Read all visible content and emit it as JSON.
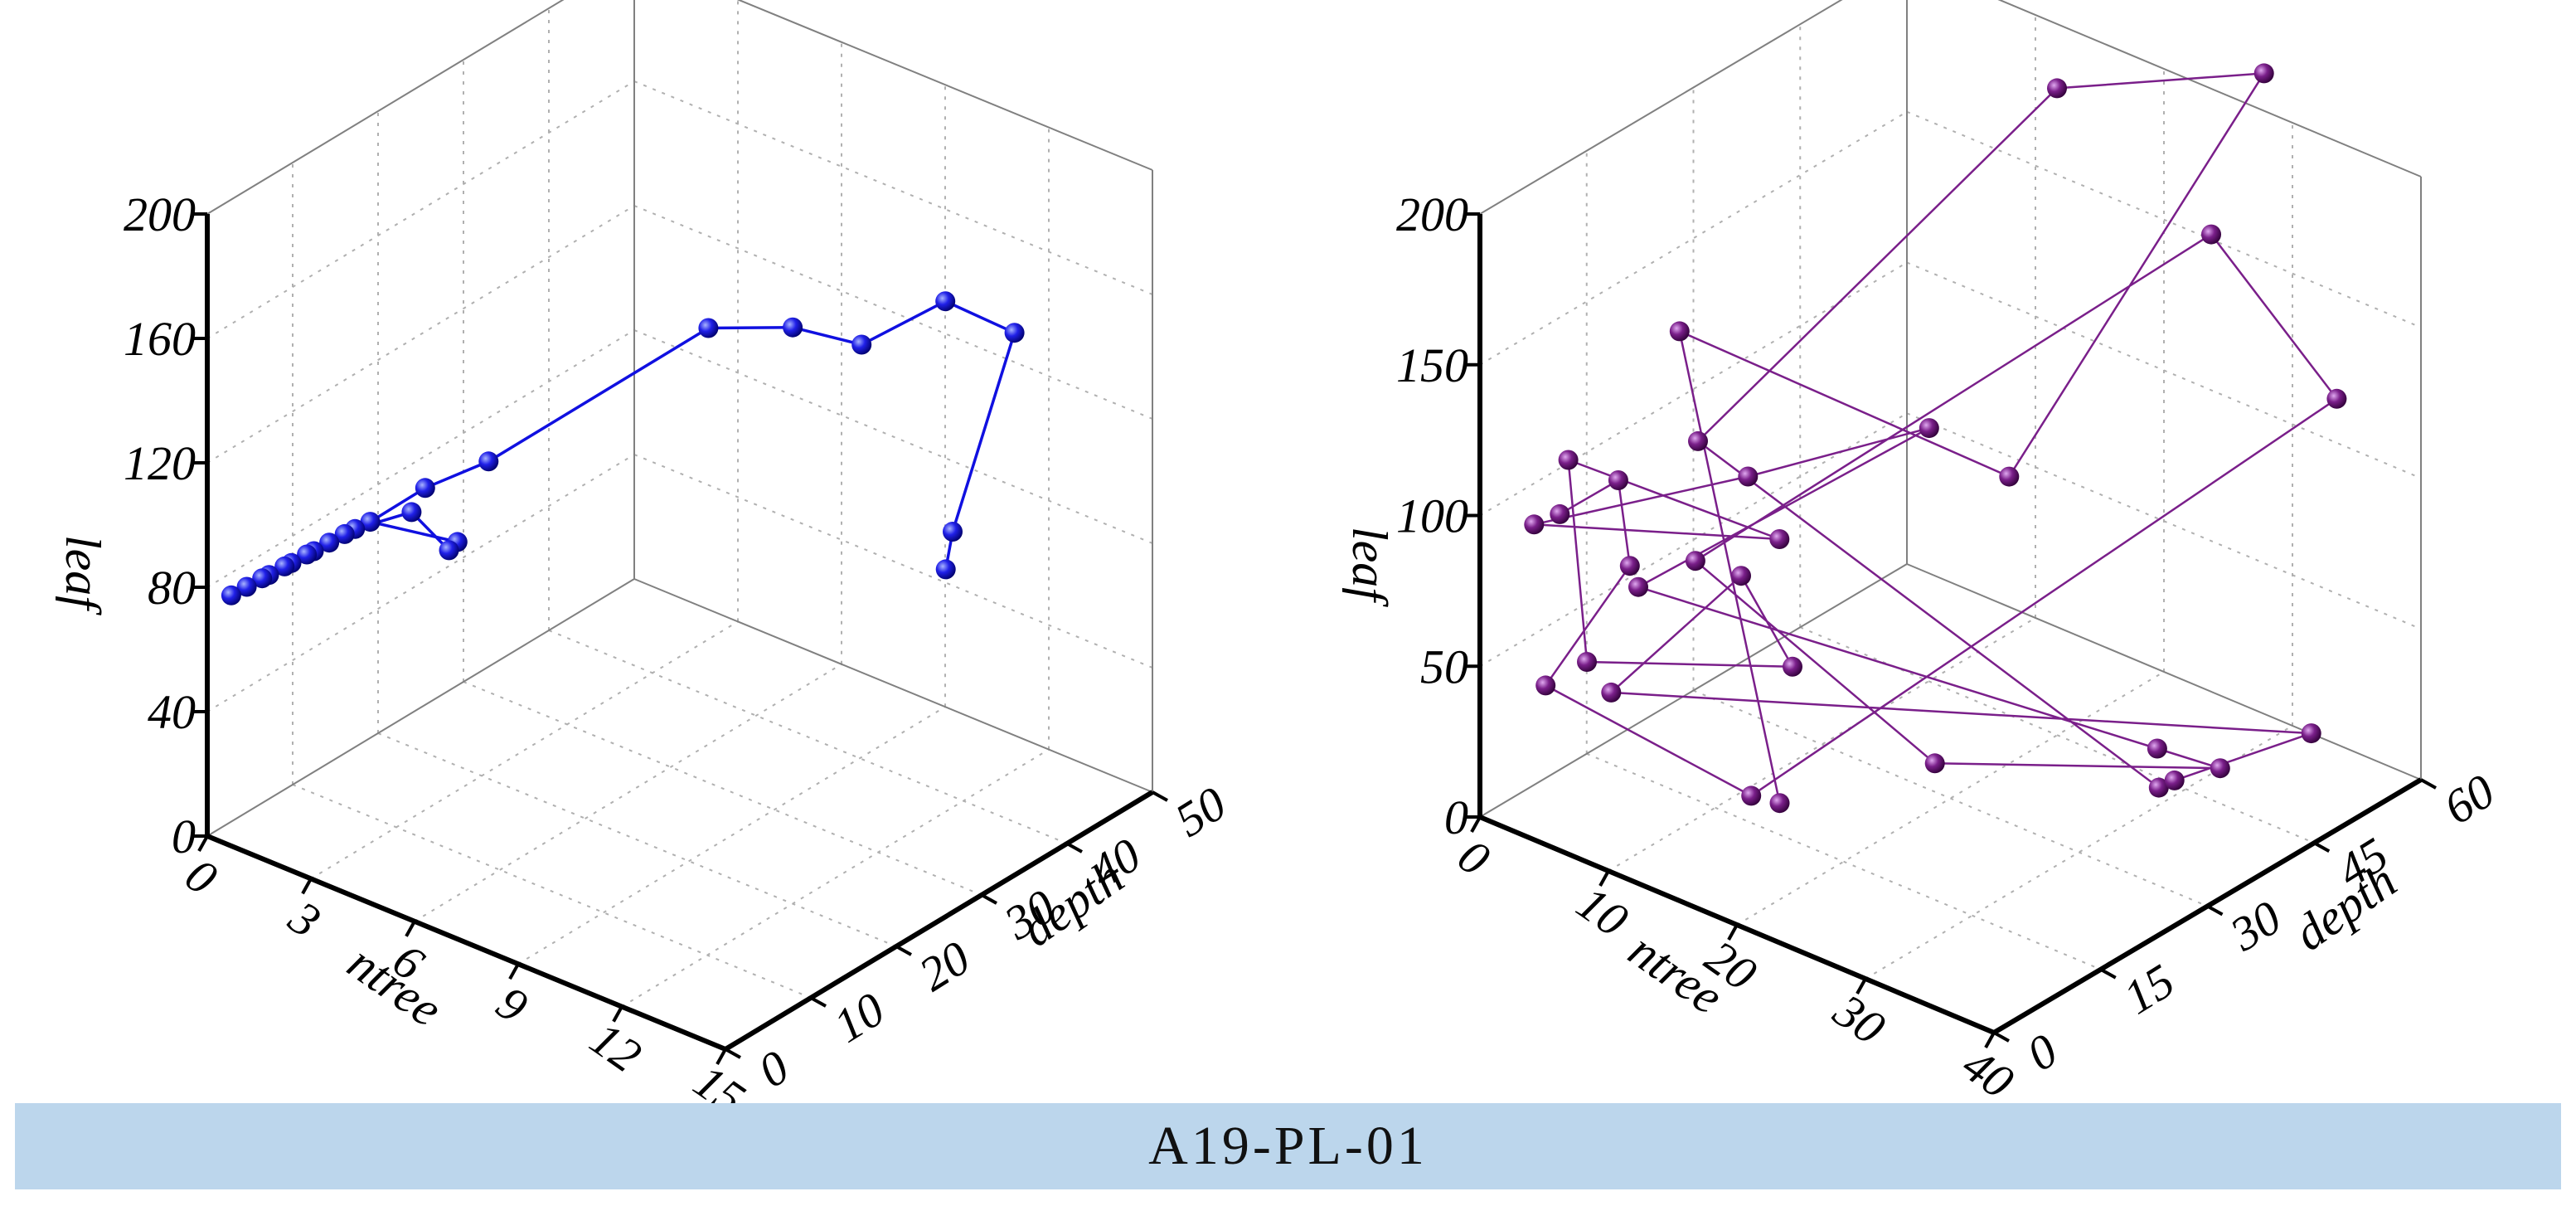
{
  "footer": {
    "label": "A19-PL-01"
  },
  "colors": {
    "left_series": "#1010e0",
    "right_series": "#7a1f8a",
    "grid": "#b0b0b0",
    "frame": "#808080",
    "axis": "#000000",
    "footer_bg": "#bcd6ec"
  },
  "chart_data": [
    {
      "type": "scatter3d-line",
      "title": "",
      "axes": {
        "x": {
          "label": "ntree",
          "range": [
            0,
            15
          ],
          "ticks": [
            "0",
            "3",
            "6",
            "9",
            "12",
            "15"
          ]
        },
        "y": {
          "label": "depth",
          "range": [
            0,
            50
          ],
          "ticks": [
            "0",
            "10",
            "20",
            "30",
            "40",
            "50"
          ]
        },
        "z": {
          "label": "leaf",
          "range": [
            0,
            200
          ],
          "ticks": [
            "0",
            "40",
            "80",
            "120",
            "160",
            "200"
          ]
        }
      },
      "grid": true,
      "series": [
        {
          "name": "left",
          "points": [
            [
              10.5,
              44,
              61
            ],
            [
              10.7,
              44,
              74
            ],
            [
              11.5,
              48,
              135
            ],
            [
              9.5,
              48,
              136
            ],
            [
              9.3,
              39,
              136
            ],
            [
              7.8,
              37,
              138
            ],
            [
              6.1,
              34,
              135
            ],
            [
              3.2,
              20,
              102
            ],
            [
              2.6,
              15,
              99
            ],
            [
              2.0,
              11,
              92
            ],
            [
              2.3,
              20,
              72
            ],
            [
              2.3,
              19,
              71
            ],
            [
              2.7,
              13,
              95
            ],
            [
              2.3,
              8,
              96
            ],
            [
              2.0,
              8,
              93
            ],
            [
              1.8,
              7,
              91
            ],
            [
              1.6,
              6,
              89
            ],
            [
              1.4,
              6,
              87
            ],
            [
              1.2,
              5,
              85
            ],
            [
              1.0,
              5,
              83
            ],
            [
              0.8,
              4,
              81
            ],
            [
              0.6,
              4,
              79
            ],
            [
              0.4,
              3,
              77
            ],
            [
              0.2,
              2,
              75
            ]
          ]
        }
      ]
    },
    {
      "type": "scatter3d-line",
      "title": "",
      "axes": {
        "x": {
          "label": "ntree",
          "range": [
            0,
            40
          ],
          "ticks": [
            "0",
            "10",
            "20",
            "30",
            "40"
          ]
        },
        "y": {
          "label": "depth",
          "range": [
            0,
            60
          ],
          "ticks": [
            "0",
            "15",
            "30",
            "45",
            "60"
          ]
        },
        "z": {
          "label": "leaf",
          "range": [
            0,
            200
          ],
          "ticks": [
            "0",
            "50",
            "100",
            "150",
            "200"
          ]
        }
      },
      "grid": true,
      "series": [
        {
          "name": "right",
          "points": [
            [
              20,
              6,
              32
            ],
            [
              10,
              10,
              165
            ],
            [
              29,
              22,
              134
            ],
            [
              30,
              56,
              222
            ],
            [
              15,
              54,
              193
            ],
            [
              7,
              18,
              112
            ],
            [
              34,
              34,
              23
            ],
            [
              33,
              38,
              18
            ],
            [
              37,
              50,
              24
            ],
            [
              8,
              4,
              50
            ],
            [
              17,
              6,
              102
            ],
            [
              21,
              6,
              79
            ],
            [
              5,
              6,
              52
            ],
            [
              3,
              7,
              114
            ],
            [
              15,
              15,
              98
            ],
            [
              2,
              4,
              95
            ],
            [
              12,
              16,
              112
            ],
            [
              20,
              27,
              127
            ],
            [
              9,
              6,
              84
            ],
            [
              30,
              41,
              19
            ],
            [
              36,
              39,
              26
            ],
            [
              21,
              26,
              19
            ],
            [
              14,
              5,
              103
            ],
            [
              27,
              54,
              166
            ],
            [
              34,
              59,
              117
            ],
            [
              20,
              2,
              40
            ],
            [
              4,
              2,
              48
            ],
            [
              10,
              3,
              97
            ],
            [
              8,
              5,
              119
            ],
            [
              4,
              4,
              102
            ]
          ]
        }
      ]
    }
  ]
}
